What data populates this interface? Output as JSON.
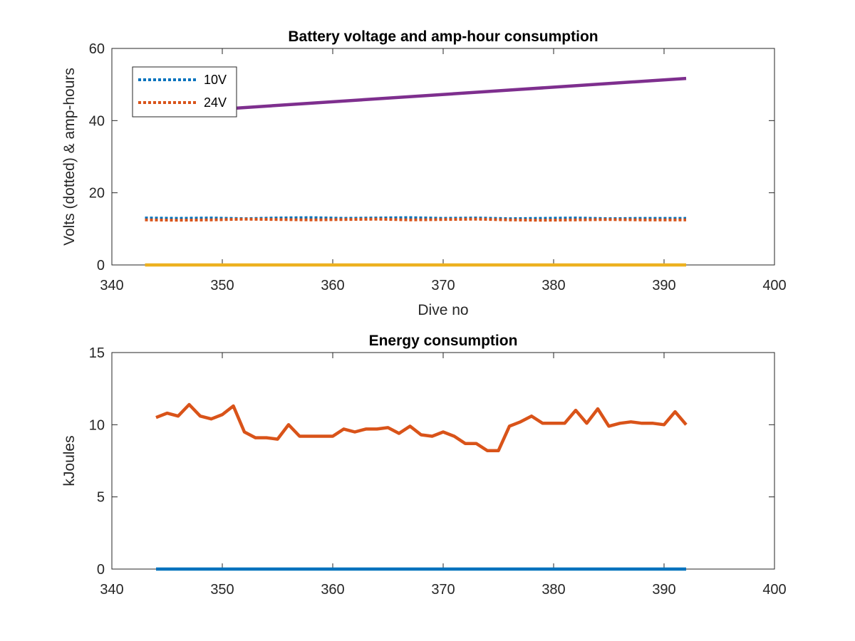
{
  "chart_data": [
    {
      "type": "line",
      "title": "Battery voltage and amp-hour consumption",
      "xlabel": "Dive no",
      "ylabel": "Volts (dotted) & amp-hours",
      "xlim": [
        340,
        400
      ],
      "ylim": [
        0,
        60
      ],
      "xticks": [
        340,
        350,
        360,
        370,
        380,
        390,
        400
      ],
      "yticks": [
        0,
        20,
        40,
        60
      ],
      "grid": false,
      "legend_position": "top-left",
      "series": [
        {
          "name": "10V",
          "style": "dotted",
          "color": "#0072BD",
          "x": [
            343,
            346,
            349,
            352,
            355,
            358,
            361,
            364,
            367,
            370,
            373,
            376,
            379,
            382,
            385,
            388,
            392
          ],
          "y": [
            13.0,
            12.9,
            13.0,
            12.8,
            13.0,
            13.1,
            12.9,
            13.0,
            13.1,
            12.9,
            13.0,
            12.8,
            12.9,
            13.0,
            12.8,
            12.9,
            12.9
          ]
        },
        {
          "name": "24V",
          "style": "dotted",
          "color": "#D95319",
          "x": [
            343,
            346,
            349,
            352,
            355,
            358,
            361,
            364,
            367,
            370,
            373,
            376,
            379,
            382,
            385,
            388,
            392
          ],
          "y": [
            12.5,
            12.4,
            12.5,
            12.7,
            12.6,
            12.5,
            12.6,
            12.7,
            12.5,
            12.6,
            12.7,
            12.5,
            12.4,
            12.5,
            12.6,
            12.5,
            12.5
          ]
        },
        {
          "style": "solid",
          "color": "#EDB120",
          "x": [
            343,
            392
          ],
          "y": [
            0,
            0
          ]
        },
        {
          "style": "solid",
          "color": "#7E2F8E",
          "x": [
            350,
            392
          ],
          "y": [
            43.2,
            51.7
          ]
        }
      ]
    },
    {
      "type": "line",
      "title": "Energy consumption",
      "xlabel": "",
      "ylabel": "kJoules",
      "xlim": [
        340,
        400
      ],
      "ylim": [
        0,
        15
      ],
      "xticks": [
        340,
        350,
        360,
        370,
        380,
        390,
        400
      ],
      "yticks": [
        0,
        5,
        10,
        15
      ],
      "grid": false,
      "series": [
        {
          "style": "solid",
          "color": "#0072BD",
          "x": [
            344,
            392
          ],
          "y": [
            0,
            0
          ]
        },
        {
          "style": "solid",
          "color": "#D95319",
          "x": [
            344,
            345,
            346,
            347,
            348,
            349,
            350,
            351,
            352,
            353,
            354,
            355,
            356,
            357,
            358,
            359,
            360,
            361,
            362,
            363,
            364,
            365,
            366,
            367,
            368,
            369,
            370,
            371,
            372,
            373,
            374,
            375,
            376,
            377,
            378,
            379,
            380,
            381,
            382,
            383,
            384,
            385,
            386,
            387,
            388,
            389,
            390,
            391,
            392
          ],
          "y": [
            10.5,
            10.8,
            10.6,
            11.4,
            10.6,
            10.4,
            10.7,
            11.3,
            9.5,
            9.1,
            9.1,
            9.0,
            10.0,
            9.2,
            9.2,
            9.2,
            9.2,
            9.7,
            9.5,
            9.7,
            9.7,
            9.8,
            9.4,
            9.9,
            9.3,
            9.2,
            9.5,
            9.2,
            8.7,
            8.7,
            8.2,
            8.2,
            9.9,
            10.2,
            10.6,
            10.1,
            10.1,
            10.1,
            11.0,
            10.1,
            11.1,
            9.9,
            10.1,
            10.2,
            10.1,
            10.1,
            10.0,
            10.9,
            10.0
          ]
        }
      ]
    }
  ]
}
